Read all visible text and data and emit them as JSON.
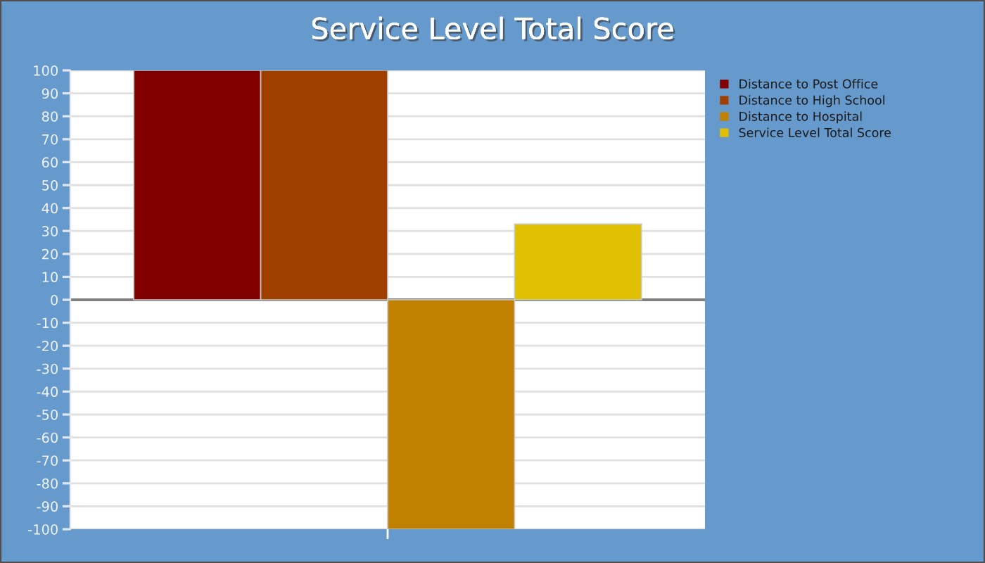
{
  "chart_data": {
    "type": "bar",
    "title": "Service Level Total Score",
    "categories": [
      null
    ],
    "series": [
      {
        "name": "Distance to Post Office",
        "color": "#800000",
        "values": [
          100
        ]
      },
      {
        "name": "Distance to High School",
        "color": "#a04000",
        "values": [
          100
        ]
      },
      {
        "name": "Distance to Hospital",
        "color": "#c08000",
        "values": [
          -100
        ]
      },
      {
        "name": "Service Level Total Score",
        "color": "#e0c000",
        "values": [
          33
        ]
      }
    ],
    "ylim": [
      -100,
      100
    ],
    "yticks": [
      -100,
      -90,
      -80,
      -70,
      -60,
      -50,
      -40,
      -30,
      -20,
      -10,
      0,
      10,
      20,
      30,
      40,
      50,
      60,
      70,
      80,
      90,
      100
    ],
    "grid": "y",
    "legend": "top right",
    "ref_lines": [
      {
        "axis": "y",
        "value": 0,
        "color": "#808080"
      }
    ]
  }
}
